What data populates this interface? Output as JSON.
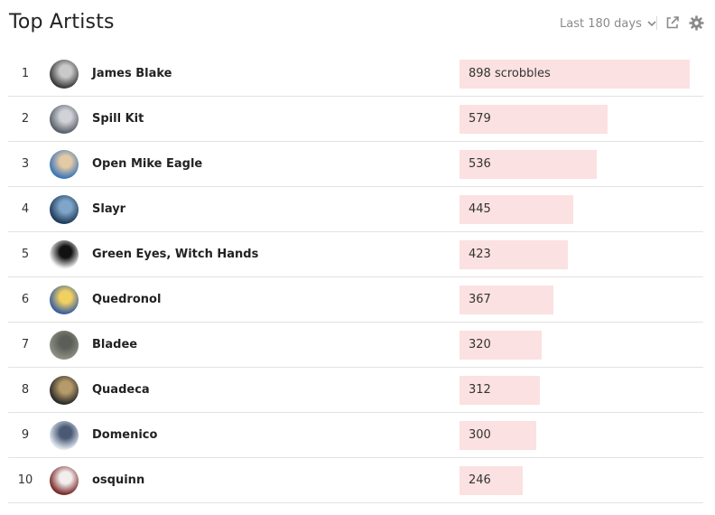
{
  "header": {
    "title": "Top Artists",
    "range_label": "Last 180 days",
    "icons": [
      "chevron-down-icon",
      "share-icon",
      "gear-icon"
    ]
  },
  "bar_color": "#fbe1e1",
  "max_scrobbles": 898,
  "artists": [
    {
      "rank": "1",
      "name": "James Blake",
      "scrobbles": 898,
      "scrobbles_label": "898 scrobbles",
      "avatar_colors": [
        "#3a3a3a",
        "#c9c9c9"
      ]
    },
    {
      "rank": "2",
      "name": "Spill Kit",
      "scrobbles": 579,
      "scrobbles_label": "579",
      "avatar_colors": [
        "#5a5f6a",
        "#d0d2d8"
      ]
    },
    {
      "rank": "3",
      "name": "Open Mike Eagle",
      "scrobbles": 536,
      "scrobbles_label": "536",
      "avatar_colors": [
        "#3b76b8",
        "#e3c9a6"
      ]
    },
    {
      "rank": "4",
      "name": "Slayr",
      "scrobbles": 445,
      "scrobbles_label": "445",
      "avatar_colors": [
        "#1f3b5a",
        "#7fa6c9"
      ]
    },
    {
      "rank": "5",
      "name": "Green Eyes, Witch Hands",
      "scrobbles": 423,
      "scrobbles_label": "423",
      "avatar_colors": [
        "#f5f5f5",
        "#111111"
      ]
    },
    {
      "rank": "6",
      "name": "Quedronol",
      "scrobbles": 367,
      "scrobbles_label": "367",
      "avatar_colors": [
        "#3a5fa0",
        "#f0d060"
      ]
    },
    {
      "rank": "7",
      "name": "Bladee",
      "scrobbles": 320,
      "scrobbles_label": "320",
      "avatar_colors": [
        "#8d8f84",
        "#5c5f57"
      ]
    },
    {
      "rank": "8",
      "name": "Quadeca",
      "scrobbles": 312,
      "scrobbles_label": "312",
      "avatar_colors": [
        "#2a2a2a",
        "#b59a6a"
      ]
    },
    {
      "rank": "9",
      "name": "Domenico",
      "scrobbles": 300,
      "scrobbles_label": "300",
      "avatar_colors": [
        "#dfe6ee",
        "#4a5a75"
      ]
    },
    {
      "rank": "10",
      "name": "osquinn",
      "scrobbles": 246,
      "scrobbles_label": "246",
      "avatar_colors": [
        "#7a2a2a",
        "#f3eeee"
      ]
    }
  ]
}
